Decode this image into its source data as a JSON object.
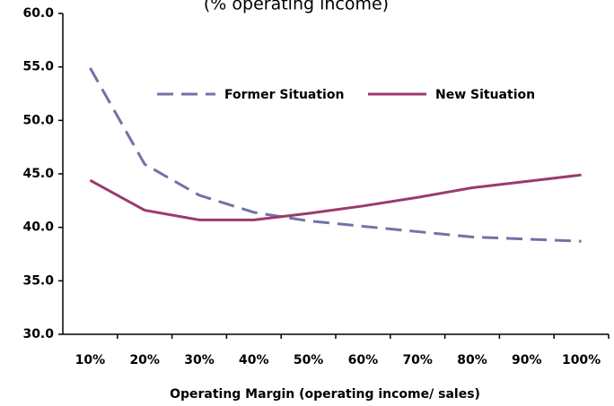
{
  "chart_data": {
    "type": "line",
    "title": "(% operating income)",
    "x_label": "Operating Margin (operating income/ sales)",
    "categories": [
      "10%",
      "20%",
      "30%",
      "40%",
      "50%",
      "60%",
      "70%",
      "80%",
      "90%",
      "100%"
    ],
    "series": [
      {
        "name": "Former Situation",
        "color": "#7272a8",
        "dash": true,
        "values": [
          54.9,
          45.9,
          43.0,
          41.4,
          40.6,
          40.1,
          39.6,
          39.1,
          38.9,
          38.7
        ]
      },
      {
        "name": "New Situation",
        "color": "#9b3a6c",
        "dash": false,
        "values": [
          44.4,
          41.6,
          40.7,
          40.7,
          41.3,
          42.0,
          42.8,
          43.7,
          44.3,
          44.9
        ]
      }
    ],
    "ylim": [
      30,
      60
    ],
    "yticks": [
      {
        "value": 30,
        "label": "30.0"
      },
      {
        "value": 35,
        "label": "35.0"
      },
      {
        "value": 40,
        "label": "40.0"
      },
      {
        "value": 45,
        "label": "45.0"
      },
      {
        "value": 50,
        "label": "50.0"
      },
      {
        "value": 55,
        "label": "55.0"
      },
      {
        "value": 60,
        "label": "60.0"
      }
    ],
    "grid": false,
    "legend": "top"
  }
}
